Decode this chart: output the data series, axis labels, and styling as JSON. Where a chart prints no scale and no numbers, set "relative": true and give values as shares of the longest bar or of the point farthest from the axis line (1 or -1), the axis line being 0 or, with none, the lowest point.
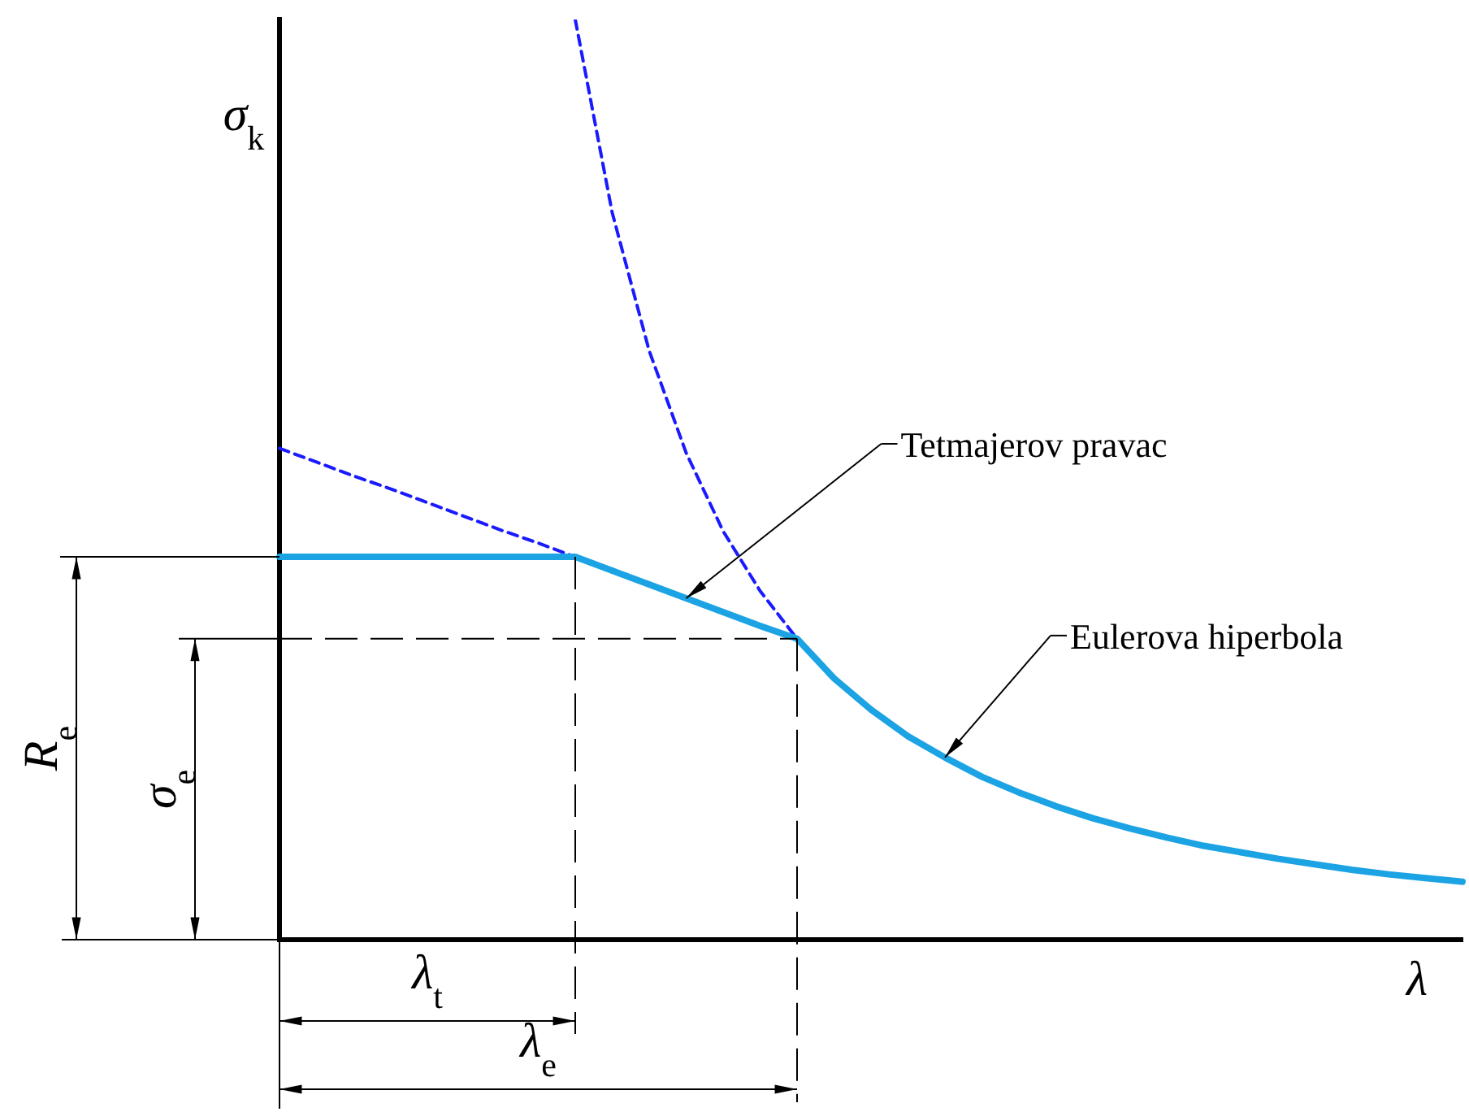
{
  "chart_data": {
    "type": "line",
    "relative": true,
    "xlabel": "λ",
    "ylabel": "σ$_{k}$",
    "legend": false,
    "marker": "none",
    "categories": [
      null,
      null,
      null,
      null,
      null,
      null,
      null,
      null,
      null,
      null,
      null,
      null,
      null,
      null,
      null,
      null,
      null,
      null,
      null,
      null,
      null,
      null,
      null,
      null,
      null,
      null,
      null,
      null,
      null,
      null,
      null,
      null,
      null
    ],
    "series": [
      {
        "color": "#1ca3e3",
        "line_style": "solid",
        "values": [
          0.416,
          0.416,
          0.416,
          0.416,
          0.416,
          0.416,
          0.416,
          0.416,
          0.416,
          0.401,
          0.386,
          0.371,
          0.356,
          0.341,
          0.327,
          0.284,
          0.25,
          0.221,
          0.198,
          0.177,
          0.16,
          0.145,
          0.132,
          0.121,
          0.111,
          0.102,
          0.095,
          0.088,
          0.082,
          0.076,
          0.071,
          0.067,
          0.063
        ]
      },
      {
        "color": "#1a1aff",
        "line_style": "dashed",
        "values": [
          0.534,
          0.519,
          0.504,
          0.49,
          0.475,
          0.46,
          0.445,
          0.431,
          0.416,
          null,
          null,
          null,
          null,
          null,
          null,
          null,
          null,
          null,
          null,
          null,
          null,
          null,
          null,
          null,
          null,
          null,
          null,
          null,
          null,
          null,
          null,
          null,
          null
        ]
      },
      {
        "color": "#1a1aff",
        "line_style": "dashed",
        "values": [
          null,
          null,
          null,
          null,
          null,
          null,
          null,
          null,
          1,
          0.79,
          0.64,
          0.529,
          0.444,
          0.379,
          0.327,
          null,
          null,
          null,
          null,
          null,
          null,
          null,
          null,
          null,
          null,
          null,
          null,
          null,
          null,
          null,
          null,
          null,
          null
        ]
      }
    ],
    "ref_lines": [
      {
        "axis": "y",
        "value": 0.327,
        "label": "σ$_{e}$",
        "color": "#000000",
        "line_style": "dashed"
      }
    ],
    "annotations": [
      "Tetmajerov pravac",
      "Eulerova hiperbola",
      "λ$_{t}$",
      "λ$_{e}$",
      "R$_{e}$"
    ]
  }
}
